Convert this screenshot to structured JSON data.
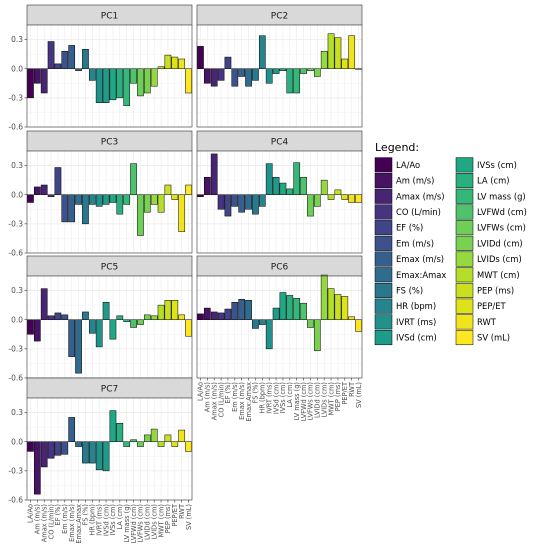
{
  "chart_data": {
    "type": "bar",
    "facets": [
      "PC1",
      "PC2",
      "PC3",
      "PC4",
      "PC5",
      "PC6",
      "PC7"
    ],
    "categories": [
      "LA/Ao",
      "Am (m/s)",
      "Amax (m/s)",
      "CO (L/min)",
      "EF (%)",
      "Em (m/s)",
      "Emax (m/s)",
      "Emax:Amax",
      "FS (%)",
      "HR (bpm)",
      "IVRT (ms)",
      "IVSd (cm)",
      "IVSs (cm)",
      "LA (cm)",
      "LV mass (g)",
      "LVFWd (cm)",
      "LVFWs (cm)",
      "LVIDd (cm)",
      "LVIDs (cm)",
      "MWT (cm)",
      "PEP (ms)",
      "PEP/ET",
      "RWT",
      "SV (mL)"
    ],
    "colors": [
      "#440154",
      "#471365",
      "#482475",
      "#463480",
      "#414487",
      "#3b528b",
      "#355f8d",
      "#2f6c8e",
      "#2a788e",
      "#25848e",
      "#21918c",
      "#1e9c89",
      "#20a884",
      "#2ab07f",
      "#35b779",
      "#4ec36b",
      "#6ece58",
      "#7ad151",
      "#95d840",
      "#b5de2b",
      "#c8e020",
      "#dde318",
      "#f0e51d",
      "#fde725"
    ],
    "series": [
      {
        "name": "PC1",
        "values": [
          -0.3,
          -0.15,
          -0.25,
          0.28,
          0.05,
          0.18,
          0.24,
          -0.02,
          0.2,
          -0.12,
          -0.35,
          -0.35,
          -0.32,
          -0.3,
          -0.38,
          -0.15,
          -0.28,
          -0.25,
          -0.18,
          0.02,
          0.14,
          0.12,
          0.1,
          -0.25
        ]
      },
      {
        "name": "PC2",
        "values": [
          0.23,
          -0.15,
          -0.18,
          -0.12,
          0.12,
          -0.18,
          -0.08,
          -0.18,
          -0.12,
          0.34,
          -0.15,
          -0.05,
          -0.02,
          -0.25,
          -0.25,
          -0.05,
          -0.02,
          -0.08,
          0.18,
          0.36,
          0.32,
          0.1,
          0.34,
          0.0
        ]
      },
      {
        "name": "PC3",
        "values": [
          -0.08,
          0.08,
          0.1,
          -0.02,
          0.28,
          -0.28,
          -0.28,
          -0.1,
          -0.3,
          -0.1,
          -0.12,
          -0.1,
          -0.08,
          -0.2,
          -0.1,
          0.32,
          -0.42,
          -0.18,
          -0.1,
          -0.18,
          0.1,
          -0.05,
          -0.38,
          0.1
        ]
      },
      {
        "name": "PC4",
        "values": [
          -0.02,
          0.18,
          0.42,
          -0.15,
          -0.22,
          -0.12,
          -0.18,
          -0.15,
          -0.2,
          -0.12,
          0.32,
          0.18,
          0.12,
          0.06,
          0.33,
          0.18,
          -0.22,
          -0.12,
          0.15,
          -0.05,
          0.05,
          -0.05,
          -0.08,
          -0.08
        ]
      },
      {
        "name": "PC5",
        "values": [
          -0.15,
          -0.22,
          0.32,
          0.04,
          0.07,
          0.05,
          -0.38,
          -0.55,
          0.08,
          -0.14,
          -0.28,
          0.18,
          -0.2,
          0.04,
          -0.02,
          -0.08,
          -0.05,
          0.05,
          0.04,
          0.15,
          0.2,
          0.2,
          0.05,
          -0.17
        ]
      },
      {
        "name": "PC6",
        "values": [
          0.06,
          0.12,
          0.08,
          0.07,
          0.11,
          0.18,
          0.21,
          0.2,
          -0.09,
          -0.05,
          -0.3,
          0.12,
          0.28,
          0.25,
          0.22,
          0.17,
          -0.08,
          -0.32,
          0.46,
          0.32,
          0.26,
          0.24,
          0.03,
          -0.12
        ]
      },
      {
        "name": "PC7",
        "values": [
          -0.1,
          -0.54,
          -0.26,
          -0.17,
          -0.14,
          -0.13,
          0.25,
          -0.05,
          -0.22,
          -0.22,
          -0.29,
          -0.3,
          0.32,
          0.19,
          -0.05,
          0.02,
          -0.05,
          0.07,
          0.13,
          -0.05,
          0.07,
          -0.05,
          0.12,
          -0.1
        ]
      }
    ],
    "ylim": [
      -0.6,
      0.45
    ],
    "yticks": [
      "0.3",
      "0.0",
      "-0.3",
      "-0.6"
    ],
    "legend": {
      "title": "Legend:",
      "position": "right"
    },
    "grid": true
  }
}
